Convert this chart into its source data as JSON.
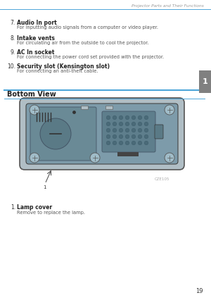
{
  "bg_color": "#ffffff",
  "header_text": "Projector Parts and Their Functions",
  "header_line_color": "#4da6d9",
  "tab_color": "#808080",
  "tab_text": "1",
  "page_number": "19",
  "items": [
    {
      "num": "7.",
      "bold": "Audio In port",
      "desc": "For inputting audio signals from a computer or video player."
    },
    {
      "num": "8.",
      "bold": "Intake vents",
      "desc": "For circulating air from the outside to cool the projector."
    },
    {
      "num": "9.",
      "bold": "AC In socket",
      "desc": "For connecting the power cord set provided with the projector."
    },
    {
      "num": "10.",
      "bold": "Security slot (Kensington slot)",
      "desc": "For connecting an anti-theft cable."
    }
  ],
  "section_title": "Bottom View",
  "section_line_color": "#4da6d9",
  "bottom_item_num": "1.",
  "bottom_item_bold": "Lamp cover",
  "bottom_item_desc": "Remove to replace the lamp.",
  "caption": "CZE105",
  "proj_body_fill": "#7d9baa",
  "proj_body_edge": "#333333",
  "proj_inner_fill": "#6a8a96",
  "proj_lamp_fill": "#5a7a86",
  "proj_grid_fill": "#5e7e8c",
  "proj_dot_fill": "#4a6a78",
  "proj_screw_fill": "#a0bcc8"
}
